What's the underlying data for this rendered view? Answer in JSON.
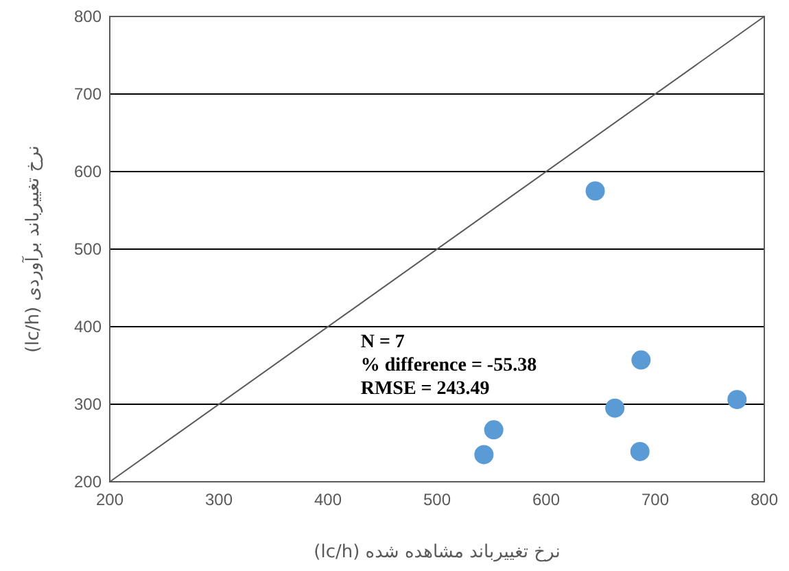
{
  "chart_data": {
    "type": "scatter",
    "xlabel": "نرخ تغییرباند مشاهده شده (lc/h)",
    "ylabel": "نرخ تغییرباند برآوردی (lc/h)",
    "xlim": [
      200,
      800
    ],
    "ylim": [
      200,
      800
    ],
    "xticks": [
      200,
      300,
      400,
      500,
      600,
      700,
      800
    ],
    "yticks": [
      200,
      300,
      400,
      500,
      600,
      700,
      800
    ],
    "grid": "y",
    "marker": "circle",
    "series": [
      {
        "color": "#5b9bd5",
        "x": [
          645,
          687,
          775,
          663,
          552,
          543,
          686
        ],
        "values": [
          575,
          357,
          306,
          295,
          267,
          235,
          239
        ]
      },
      {
        "type": "line",
        "marker": "none",
        "color": "#595959",
        "x": [
          200,
          800
        ],
        "values": [
          200,
          800
        ]
      }
    ],
    "annotations": [
      "N = 7",
      "% difference = -55.38",
      "RMSE = 243.49"
    ]
  }
}
